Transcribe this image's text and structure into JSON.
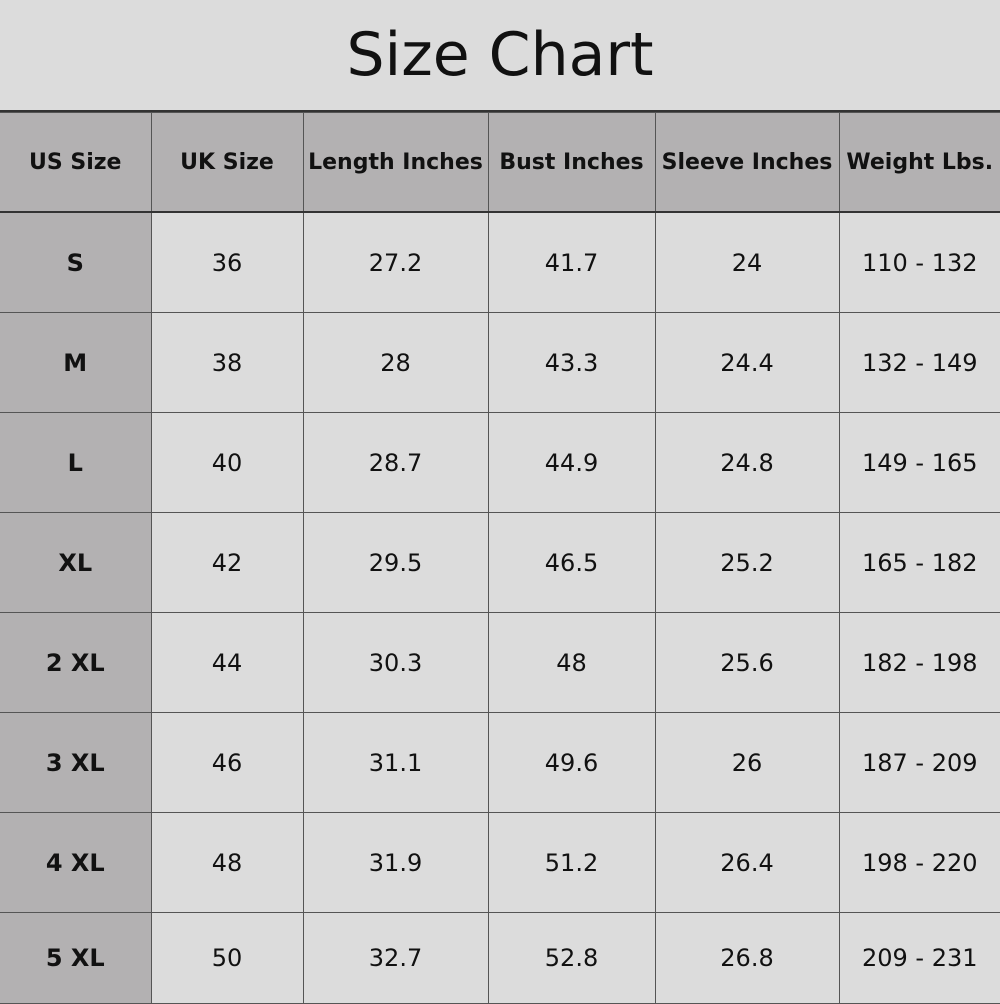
{
  "title": "Size Chart",
  "colors": {
    "header_bg": "#b3b1b2",
    "body_bg": "#dcdcdc"
  },
  "columns": [
    "US Size",
    "UK Size",
    "Length Inches",
    "Bust Inches",
    "Sleeve Inches",
    "Weight Lbs."
  ],
  "rows": [
    [
      "S",
      "36",
      "27.2",
      "41.7",
      "24",
      "110 - 132"
    ],
    [
      "M",
      "38",
      "28",
      "43.3",
      "24.4",
      "132 - 149"
    ],
    [
      "L",
      "40",
      "28.7",
      "44.9",
      "24.8",
      "149 - 165"
    ],
    [
      "XL",
      "42",
      "29.5",
      "46.5",
      "25.2",
      "165 - 182"
    ],
    [
      "2 XL",
      "44",
      "30.3",
      "48",
      "25.6",
      "182 - 198"
    ],
    [
      "3 XL",
      "46",
      "31.1",
      "49.6",
      "26",
      "187 - 209"
    ],
    [
      "4 XL",
      "48",
      "31.9",
      "51.2",
      "26.4",
      "198 - 220"
    ],
    [
      "5 XL",
      "50",
      "32.7",
      "52.8",
      "26.8",
      "209 - 231"
    ]
  ]
}
